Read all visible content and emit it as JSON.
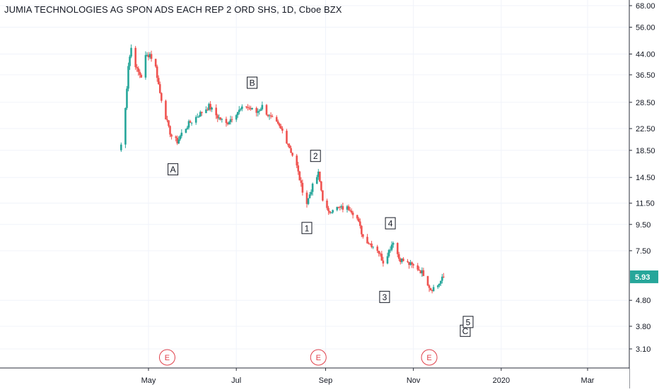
{
  "title": "JUMIA TECHNOLOGIES AG SPON ADS EACH REP 2 ORD SHS, 1D, Cboe BZX",
  "colors": {
    "up": "#26a69a",
    "down": "#ef5350",
    "grid": "#f0f3fa",
    "axis_text": "#131722",
    "price_tag": "#26a69a",
    "earnings": "#e0414b"
  },
  "price_axis": {
    "scale": "log",
    "ticks": [
      "68.00",
      "56.00",
      "44.00",
      "36.50",
      "28.50",
      "22.50",
      "18.50",
      "14.50",
      "11.50",
      "9.50",
      "7.50",
      "4.80",
      "3.80",
      "3.10"
    ],
    "current_price_label": "5.93"
  },
  "time_axis": {
    "labels": [
      "May",
      "Jul",
      "Sep",
      "Nov",
      "2020",
      "Mar"
    ]
  },
  "earnings_marker_label": "E",
  "chart_data": {
    "type": "candlestick",
    "title": "JUMIA TECHNOLOGIES AG SPON ADS EACH REP 2 ORD SHS, 1D, Cboe BZX",
    "y_scale": "log",
    "ylim": [
      2.8,
      72
    ],
    "x_start": "2019-04-12",
    "x_end": "2020-04-02",
    "x_tick_labels": [
      "May",
      "Jul",
      "Sep",
      "Nov",
      "2020",
      "Mar"
    ],
    "last_price": 5.93,
    "anchors": [
      [
        "2019-04-12",
        19.5
      ],
      [
        "2019-04-15",
        27
      ],
      [
        "2019-04-17",
        40
      ],
      [
        "2019-04-19",
        46.5
      ],
      [
        "2019-04-23",
        38
      ],
      [
        "2019-04-26",
        36
      ],
      [
        "2019-04-29",
        43
      ],
      [
        "2019-05-02",
        44
      ],
      [
        "2019-05-06",
        39
      ],
      [
        "2019-05-09",
        31
      ],
      [
        "2019-05-13",
        25
      ],
      [
        "2019-05-15",
        22.5
      ],
      [
        "2019-05-17",
        21
      ],
      [
        "2019-05-21",
        20
      ],
      [
        "2019-05-24",
        21.5
      ],
      [
        "2019-05-29",
        23.5
      ],
      [
        "2019-06-05",
        25.5
      ],
      [
        "2019-06-12",
        27.5
      ],
      [
        "2019-06-18",
        25
      ],
      [
        "2019-06-24",
        23.5
      ],
      [
        "2019-07-01",
        26
      ],
      [
        "2019-07-08",
        27.5
      ],
      [
        "2019-07-15",
        26
      ],
      [
        "2019-07-19",
        27.5
      ],
      [
        "2019-07-24",
        25
      ],
      [
        "2019-07-29",
        23.5
      ],
      [
        "2019-08-02",
        22
      ],
      [
        "2019-08-07",
        19
      ],
      [
        "2019-08-12",
        16
      ],
      [
        "2019-08-15",
        13.5
      ],
      [
        "2019-08-19",
        11.5
      ],
      [
        "2019-08-22",
        13
      ],
      [
        "2019-08-27",
        15
      ],
      [
        "2019-08-30",
        12
      ],
      [
        "2019-09-03",
        10.5
      ],
      [
        "2019-09-06",
        11
      ],
      [
        "2019-09-12",
        11
      ],
      [
        "2019-09-18",
        11
      ],
      [
        "2019-09-23",
        10
      ],
      [
        "2019-09-27",
        8.5
      ],
      [
        "2019-10-02",
        8
      ],
      [
        "2019-10-07",
        7.6
      ],
      [
        "2019-10-11",
        6.8
      ],
      [
        "2019-10-15",
        7.5
      ],
      [
        "2019-10-18",
        8.2
      ],
      [
        "2019-10-22",
        7
      ],
      [
        "2019-10-28",
        6.7
      ],
      [
        "2019-11-04",
        6.4
      ],
      [
        "2019-11-08",
        6.1
      ],
      [
        "2019-11-13",
        5.3
      ],
      [
        "2019-11-18",
        5.5
      ],
      [
        "2019-11-22",
        5.93
      ]
    ],
    "wave_labels": [
      {
        "text": "A",
        "date": "2019-05-18",
        "price": 15.6
      },
      {
        "text": "B",
        "date": "2019-07-12",
        "price": 34.0
      },
      {
        "text": "1",
        "date": "2019-08-19",
        "price": 9.2
      },
      {
        "text": "2",
        "date": "2019-08-25",
        "price": 17.6
      },
      {
        "text": "3",
        "date": "2019-10-12",
        "price": 4.95
      },
      {
        "text": "4",
        "date": "2019-10-16",
        "price": 9.6
      },
      {
        "text": "C",
        "date": "2019-12-07",
        "price": 3.65
      },
      {
        "text": "5",
        "date": "2019-12-09",
        "price": 3.95
      }
    ],
    "earnings_dates": [
      "2019-05-14",
      "2019-08-27",
      "2019-11-12"
    ]
  }
}
